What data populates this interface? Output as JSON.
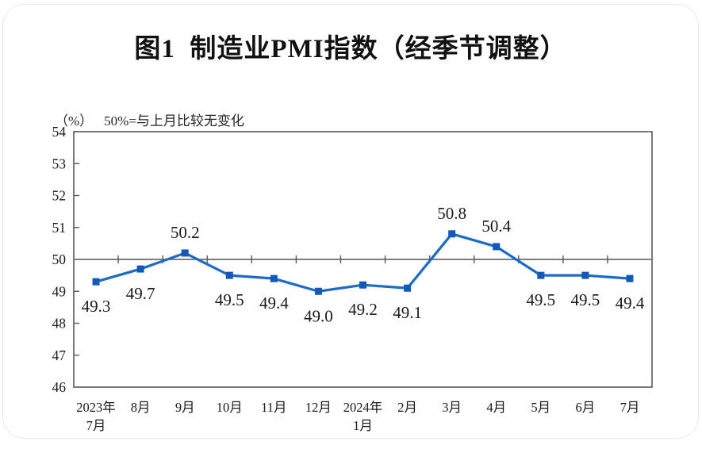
{
  "page": {
    "background_color": "#ffffff",
    "card_border_color": "#e9e9e9"
  },
  "header": {
    "title": "图1  制造业PMI指数（经季节调整）"
  },
  "subtitle": {
    "unit": "（%）",
    "note": "50%=与上月比较无变化"
  },
  "chart_data": {
    "type": "line",
    "title": "图1 制造业PMI指数（经季节调整）",
    "ylabel": "(%)",
    "xlabel": "",
    "x_labels": [
      [
        "2023年",
        "7月"
      ],
      [
        "8月"
      ],
      [
        "9月"
      ],
      [
        "10月"
      ],
      [
        "11月"
      ],
      [
        "12月"
      ],
      [
        "2024年",
        "1月"
      ],
      [
        "2月"
      ],
      [
        "3月"
      ],
      [
        "4月"
      ],
      [
        "5月"
      ],
      [
        "6月"
      ],
      [
        "7月"
      ]
    ],
    "series": [
      {
        "name": "制造业PMI指数",
        "values": [
          49.3,
          49.7,
          50.2,
          49.5,
          49.4,
          49.0,
          49.2,
          49.1,
          50.8,
          50.4,
          49.5,
          49.5,
          49.4
        ]
      }
    ],
    "ylim": [
      46,
      54
    ],
    "yticks": [
      46,
      47,
      48,
      49,
      50,
      51,
      52,
      53,
      54
    ],
    "reference_line": 50,
    "label_positions": [
      "below",
      "below",
      "above",
      "below",
      "below",
      "below",
      "below",
      "below",
      "above",
      "above",
      "below",
      "below",
      "below"
    ],
    "grid": false,
    "legend": false,
    "colors": {
      "line": "#1b6bc8",
      "marker": "#1259b8",
      "reference_line": "#7f7f7f",
      "axis": "#595959",
      "text": "#1a1a1a"
    }
  }
}
